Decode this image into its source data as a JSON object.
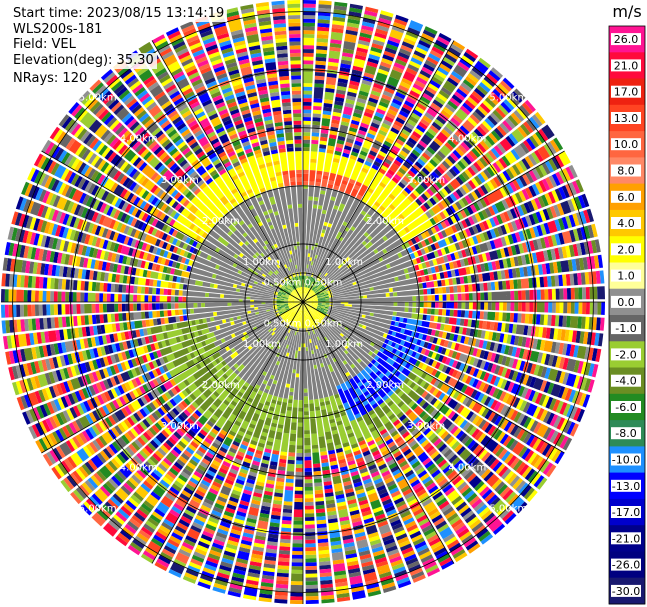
{
  "header": {
    "start_time": "Start time: 2023/08/15 13:14:19",
    "instrument": "WLS200s-181",
    "field": "Field: VEL",
    "elevation": "Elevation(deg): 35.30",
    "nrays": "NRays: 120"
  },
  "chart_data": {
    "type": "polar-ppi",
    "field": "VEL",
    "n_rays": 120,
    "range_rings": [
      {
        "range_km": 0.5,
        "label": "0.50km"
      },
      {
        "range_km": 1.0,
        "label": "1.00km"
      },
      {
        "range_km": 2.0,
        "label": "2.00km"
      },
      {
        "range_km": 3.0,
        "label": "3.00km"
      },
      {
        "range_km": 4.0,
        "label": "4.00km"
      },
      {
        "range_km": 5.0,
        "label": "5.00km"
      }
    ],
    "max_range_km": 5.2,
    "regions": [
      {
        "description": "near-center yellow core",
        "r_km": [
          0.0,
          0.45
        ],
        "velocity_ms": 3.0
      },
      {
        "description": "gray low-velocity disk",
        "r_km": [
          0.3,
          2.0
        ],
        "velocity_ms": 0.0
      },
      {
        "description": "northern yellow arc",
        "r_km": [
          2.0,
          2.6
        ],
        "az_deg": [
          300,
          60
        ],
        "velocity_ms": 3.0
      },
      {
        "description": "northern orange/red patch",
        "r_km": [
          2.0,
          2.3
        ],
        "az_deg": [
          350,
          30
        ],
        "velocity_ms": 12.0
      },
      {
        "description": "southern green arc",
        "r_km": [
          1.6,
          2.6
        ],
        "az_deg": [
          120,
          260
        ],
        "velocity_ms": -3.0
      },
      {
        "description": "southeastern blue band",
        "r_km": [
          1.3,
          2.2
        ],
        "az_deg": [
          100,
          160
        ],
        "velocity_ms": -12.0
      },
      {
        "description": "outer noise region",
        "r_km": [
          2.6,
          5.2
        ],
        "velocity_ms": "noise"
      }
    ],
    "colorbar": {
      "unit": "m/s",
      "ticks": [
        "26.0",
        "21.0",
        "17.0",
        "13.0",
        "10.0",
        "8.0",
        "6.0",
        "4.0",
        "2.0",
        "1.0",
        "0.0",
        "-1.0",
        "-2.0",
        "-4.0",
        "-6.0",
        "-8.0",
        "-10.0",
        "-13.0",
        "-17.0",
        "-21.0",
        "-26.0",
        "-30.0"
      ],
      "colors": [
        "#ff1493",
        "#ff0a3c",
        "#ee2211",
        "#ff4422",
        "#ff6640",
        "#ff8866",
        "#ffa000",
        "#ffc800",
        "#ffff00",
        "#ffff99",
        "#909090",
        "#666666",
        "#9acd32",
        "#6b8e23",
        "#228b22",
        "#2e8b57",
        "#1e90ff",
        "#0000ff",
        "#0000cd",
        "#00008b",
        "#000080",
        "#191970"
      ]
    }
  }
}
